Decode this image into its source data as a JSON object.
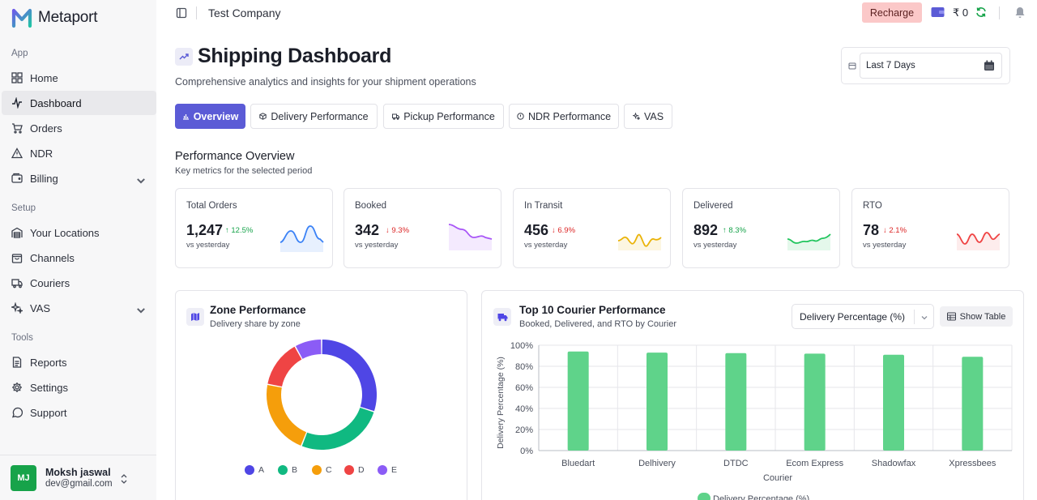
{
  "brand": {
    "name": "Metaport"
  },
  "sidebar": {
    "sections": {
      "app": "App",
      "setup": "Setup",
      "tools": "Tools"
    },
    "items": {
      "home": "Home",
      "dashboard": "Dashboard",
      "orders": "Orders",
      "ndr": "NDR",
      "billing": "Billing",
      "locations": "Your Locations",
      "channels": "Channels",
      "couriers": "Couriers",
      "vas": "VAS",
      "reports": "Reports",
      "settings": "Settings",
      "support": "Support"
    },
    "active": "dashboard"
  },
  "user": {
    "initials": "MJ",
    "name": "Moksh jaswal",
    "email": "dev@gmail.com"
  },
  "topbar": {
    "company": "Test Company",
    "recharge_label": "Recharge",
    "balance": "₹ 0"
  },
  "header": {
    "title": "Shipping Dashboard",
    "subtitle": "Comprehensive analytics and insights for your shipment operations",
    "date_range": "Last 7 Days"
  },
  "tabs": {
    "overview": "Overview",
    "delivery": "Delivery Performance",
    "pickup": "Pickup Performance",
    "ndr": "NDR Performance",
    "vas": "VAS"
  },
  "overview": {
    "title": "Performance Overview",
    "subtitle": "Key metrics for the selected period",
    "compare_note": "vs yesterday"
  },
  "kpis": {
    "total": {
      "label": "Total Orders",
      "value": "1,247",
      "change": "↑ 12.5%",
      "direction": "up",
      "color": "#3b82f6"
    },
    "booked": {
      "label": "Booked",
      "value": "342",
      "change": "↓ 9.3%",
      "direction": "down",
      "color": "#a855f7"
    },
    "transit": {
      "label": "In Transit",
      "value": "456",
      "change": "↓ 6.9%",
      "direction": "down",
      "color": "#eab308"
    },
    "delivered": {
      "label": "Delivered",
      "value": "892",
      "change": "↑ 8.3%",
      "direction": "up",
      "color": "#22c55e"
    },
    "rto": {
      "label": "RTO",
      "value": "78",
      "change": "↓ 2.1%",
      "direction": "down",
      "color": "#ef4444"
    }
  },
  "zone": {
    "title": "Zone Performance",
    "subtitle": "Delivery share by zone",
    "slices": [
      {
        "name": "A",
        "value": 30,
        "color": "#4f46e5"
      },
      {
        "name": "B",
        "value": 26,
        "color": "#10b981"
      },
      {
        "name": "C",
        "value": 22,
        "color": "#f59e0b"
      },
      {
        "name": "D",
        "value": 14,
        "color": "#ef4444"
      },
      {
        "name": "E",
        "value": 8,
        "color": "#8b5cf6"
      }
    ]
  },
  "courier": {
    "title": "Top 10 Courier Performance",
    "subtitle": "Booked, Delivered, and RTO by Courier",
    "metric": "Delivery Percentage (%)",
    "show_table": "Show Table"
  },
  "chart_data": {
    "type": "bar",
    "categories": [
      "Bluedart",
      "Delhivery",
      "DTDC",
      "Ecom Express",
      "Shadowfax",
      "Xpressbees"
    ],
    "series": [
      {
        "name": "Delivery Percentage (%)",
        "values": [
          94,
          93,
          92.5,
          92,
          91,
          89
        ],
        "color": "#5fd38a"
      }
    ],
    "yticks": [
      "0%",
      "20%",
      "40%",
      "60%",
      "80%",
      "100%"
    ],
    "ylim": [
      0,
      100
    ],
    "xlabel": "Courier",
    "ylabel": "Delivery Percentage (%)",
    "grid": true,
    "legend": "bottom"
  }
}
